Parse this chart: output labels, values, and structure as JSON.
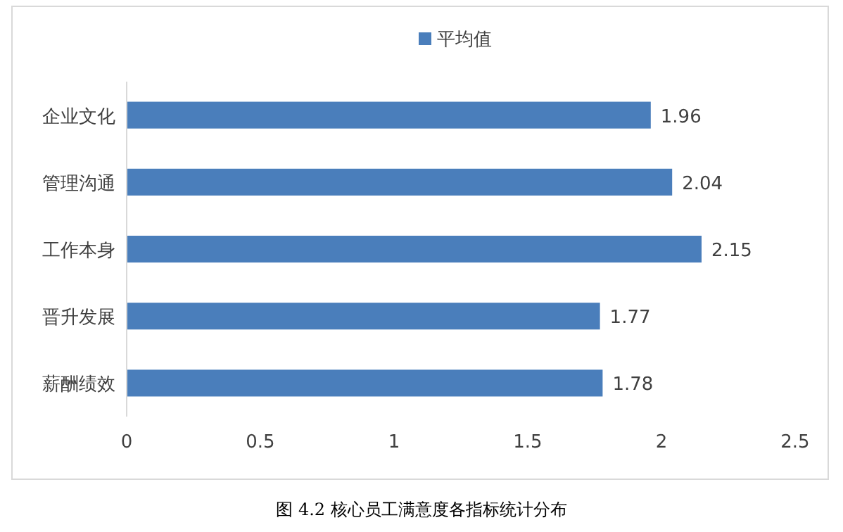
{
  "chart_data": {
    "type": "bar",
    "orientation": "horizontal",
    "categories": [
      "企业文化",
      "管理沟通",
      "工作本身",
      "晋升发展",
      "薪酬绩效"
    ],
    "series": [
      {
        "name": "平均值",
        "color": "#4a7ebb",
        "values": [
          1.96,
          2.04,
          2.15,
          1.77,
          1.78
        ]
      }
    ],
    "xlim": [
      0,
      2.5
    ],
    "xticks": [
      0,
      0.5,
      1,
      1.5,
      2,
      2.5
    ],
    "data_labels": true,
    "legend": "top",
    "grid": false,
    "annotations": [
      "图 4.2 核心员工满意度各指标统计分布"
    ]
  }
}
